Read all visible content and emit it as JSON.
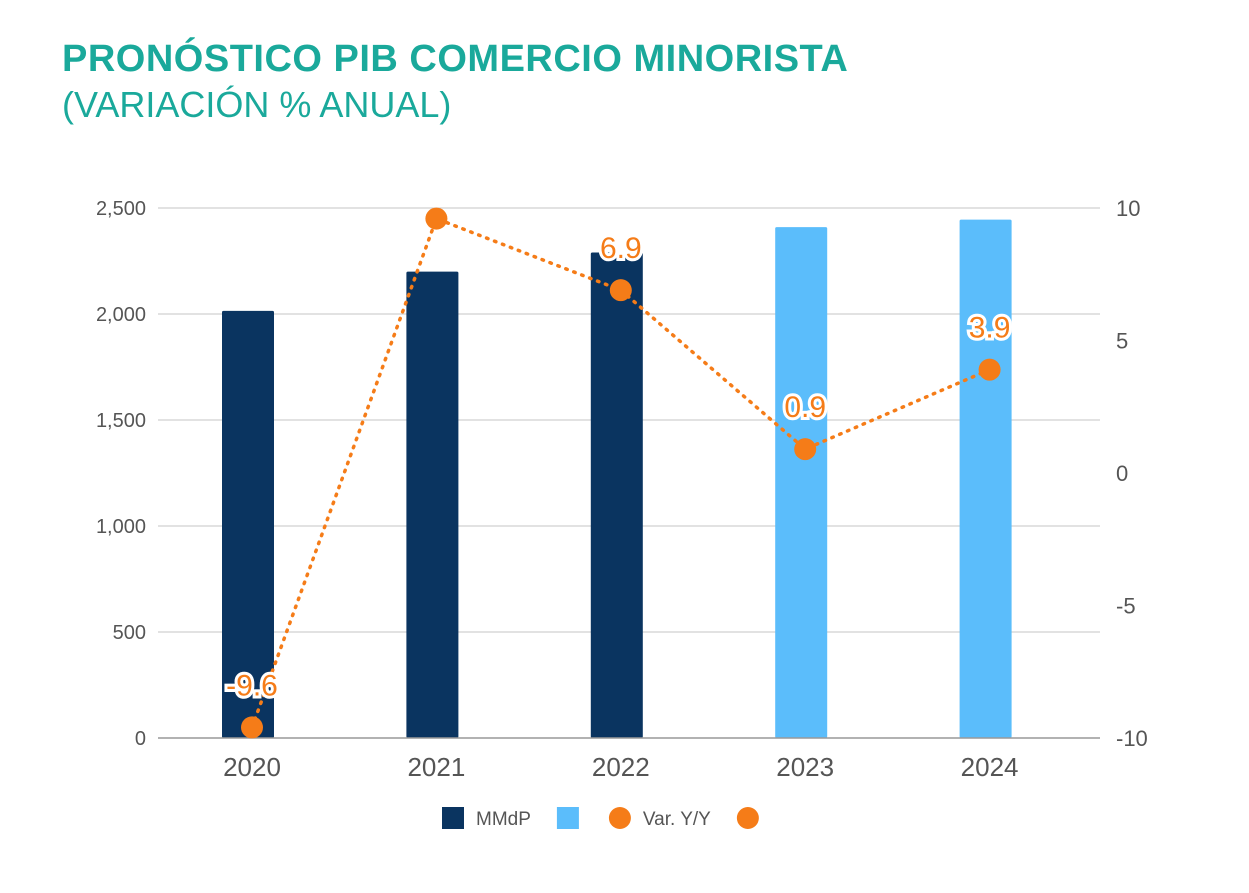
{
  "title": "PRONÓSTICO PIB COMERCIO MINORISTA",
  "subtitle": "(VARIACIÓN % ANUAL)",
  "colors": {
    "title": "#1aa99b",
    "actual_bar": "#0a3460",
    "forecast_bar": "#5bbdfb",
    "line": "#f57c18",
    "grid": "#d0d0d0",
    "axis": "#999999"
  },
  "chart_data": {
    "type": "bar",
    "categories": [
      "2020",
      "2021",
      "2022",
      "2023",
      "2024"
    ],
    "left_axis": {
      "ylim": [
        0,
        2500
      ],
      "ticks": [
        "0",
        "500",
        "1,000",
        "1,500",
        "2,000",
        "2,500"
      ]
    },
    "right_axis": {
      "ylim": [
        -10,
        10
      ],
      "ticks": [
        "-10",
        "-5",
        "0",
        "5",
        "10"
      ]
    },
    "series": [
      {
        "name": "MMdP",
        "type": "bar",
        "axis": "left",
        "color": "#0a3460",
        "values": [
          2015,
          2200,
          2290,
          null,
          null
        ]
      },
      {
        "name": "",
        "type": "bar",
        "axis": "left",
        "color": "#5bbdfb",
        "values": [
          null,
          null,
          null,
          2410,
          2445
        ]
      },
      {
        "name": "Var. Y/Y",
        "type": "line",
        "style": "dotted",
        "axis": "right",
        "color": "#f57c18",
        "values": [
          -9.6,
          9.6,
          6.9,
          0.9,
          3.9
        ],
        "labels": [
          "-9.6",
          "",
          "6.9",
          "0.9",
          "3.9"
        ]
      }
    ],
    "legend": {
      "position": "bottom",
      "items": [
        {
          "label": "MMdP",
          "shape": "square",
          "color": "#0a3460"
        },
        {
          "label": "",
          "shape": "square",
          "color": "#5bbdfb"
        },
        {
          "label": "Var. Y/Y",
          "shape": "circle",
          "color": "#f57c18"
        },
        {
          "label": "",
          "shape": "circle",
          "color": "#f57c18"
        }
      ]
    },
    "grid": true
  }
}
